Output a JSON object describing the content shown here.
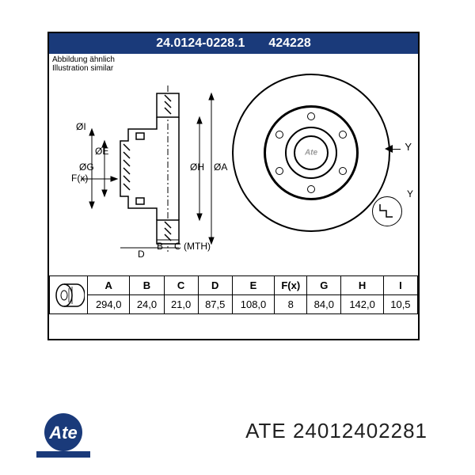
{
  "header": {
    "part_number_full": "24.0124-0228.1",
    "part_number_short": "424228",
    "bg_color": "#1a3a7a",
    "text_color": "#ffffff"
  },
  "notes": {
    "similar_de": "Abbildung ähnlich",
    "similar_en": "Illustration similar"
  },
  "dim_labels": {
    "A": "ØA",
    "B": "B",
    "C": "C (MTH)",
    "D": "D",
    "E": "ØE",
    "F": "F(x)",
    "G": "ØG",
    "H": "ØH",
    "I": "ØI",
    "Y": "Y"
  },
  "detail": {
    "label": "Y"
  },
  "spec": {
    "columns": [
      "A",
      "B",
      "C",
      "D",
      "E",
      "F(x)",
      "G",
      "H",
      "I"
    ],
    "values": [
      "294,0",
      "24,0",
      "21,0",
      "87,5",
      "108,0",
      "8",
      "84,0",
      "142,0",
      "10,5"
    ]
  },
  "front_view": {
    "bolt_count": 6,
    "logo_text": "Ate"
  },
  "brand": {
    "name": "ATE",
    "catalog_ref": "24012402281",
    "logo_bg": "#1a3a7a"
  },
  "colors": {
    "line": "#000000",
    "page_bg": "#ffffff"
  }
}
